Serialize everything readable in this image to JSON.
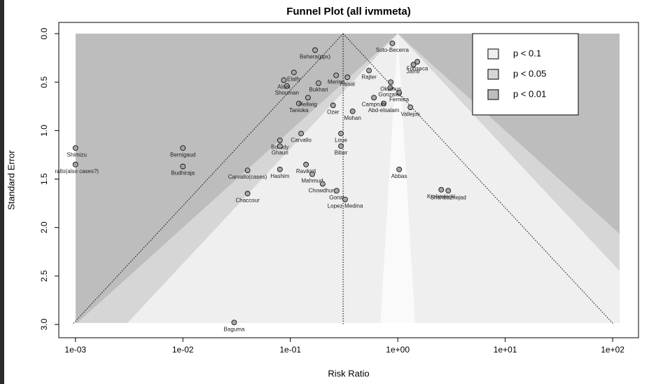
{
  "chart_data": {
    "type": "scatter",
    "title": "Funnel Plot (all ivmmeta)",
    "x_label": "Risk Ratio",
    "y_label": "Standard Error",
    "x_log": true,
    "y_reversed": true,
    "xlim": [
      0.0007,
      174
    ],
    "ylim": [
      -0.116,
      3.137
    ],
    "xticks": [
      {
        "value": 0.001,
        "label": "1e-03"
      },
      {
        "value": 0.01,
        "label": "1e-02"
      },
      {
        "value": 0.1,
        "label": "1e-01"
      },
      {
        "value": 1,
        "label": "1e+00"
      },
      {
        "value": 10,
        "label": "1e+01"
      },
      {
        "value": 100,
        "label": "1e+02"
      }
    ],
    "yticks": [
      {
        "value": 0,
        "label": "0.0"
      },
      0.5,
      {
        "value": 1,
        "label": "1.0"
      },
      1.5,
      {
        "value": 2,
        "label": "2.0"
      },
      2.5,
      {
        "value": 3,
        "label": "3.0"
      }
    ],
    "reference_line": 0.31,
    "color": "#a6a6a6",
    "legend_position": "top-right",
    "legend": [
      {
        "label": "p < 0.1",
        "color": "#efefef"
      },
      {
        "label": "p < 0.05",
        "color": "#d6d6d6"
      },
      {
        "label": "p < 0.01",
        "color": "#bdbdbd"
      }
    ],
    "labels": [
      "Shimizu",
      "rallo(also cases?)",
      "Bernigaud",
      "Budhiraja",
      "Baguma",
      "Chaccour",
      "Carvallo(cases)",
      "Borody",
      "Ghauri",
      "Hashim",
      "Carvallo",
      "Ravikirti",
      "Mahmud",
      "Chowdhury",
      "Gorial",
      "Lopez-Medina",
      "Loue",
      "Biber",
      "Abbas",
      "Krolewiecki",
      "Shahbaznejad",
      "Mohan",
      "Ozer",
      "Abd-elsalam",
      "Vallejos",
      "Ferreira",
      "Gonzalez",
      "Camprubi",
      "Okumus",
      "Tanioka",
      "Hellwig",
      "Bukhari",
      "Shouman",
      "Alam",
      "Elalfy",
      "Merino",
      "Faisal",
      "Behera(ppx)",
      "Soto-Becerra",
      "Fonseca",
      "Jamir",
      "Rajter"
    ],
    "x": [
      0.001,
      0.001,
      0.01,
      0.01,
      0.03,
      0.04,
      0.04,
      0.08,
      0.08,
      0.08,
      0.126,
      0.14,
      0.16,
      0.2,
      0.27,
      0.324,
      0.296,
      0.296,
      1.03,
      2.54,
      2.95,
      0.38,
      0.25,
      0.74,
      1.31,
      1.03,
      0.85,
      0.6,
      0.86,
      0.12,
      0.146,
      0.183,
      0.093,
      0.087,
      0.108,
      0.267,
      0.34,
      0.17,
      0.89,
      1.52,
      1.4,
      0.54
    ],
    "values": [
      1.18,
      1.35,
      1.18,
      1.37,
      2.98,
      1.65,
      1.41,
      1.1,
      1.16,
      1.4,
      1.03,
      1.35,
      1.45,
      1.55,
      1.62,
      1.71,
      1.03,
      1.16,
      1.4,
      1.61,
      1.62,
      0.8,
      0.74,
      0.72,
      0.76,
      0.61,
      0.56,
      0.66,
      0.5,
      0.72,
      0.66,
      0.51,
      0.54,
      0.48,
      0.4,
      0.43,
      0.45,
      0.17,
      0.1,
      0.29,
      0.32,
      0.38
    ]
  }
}
